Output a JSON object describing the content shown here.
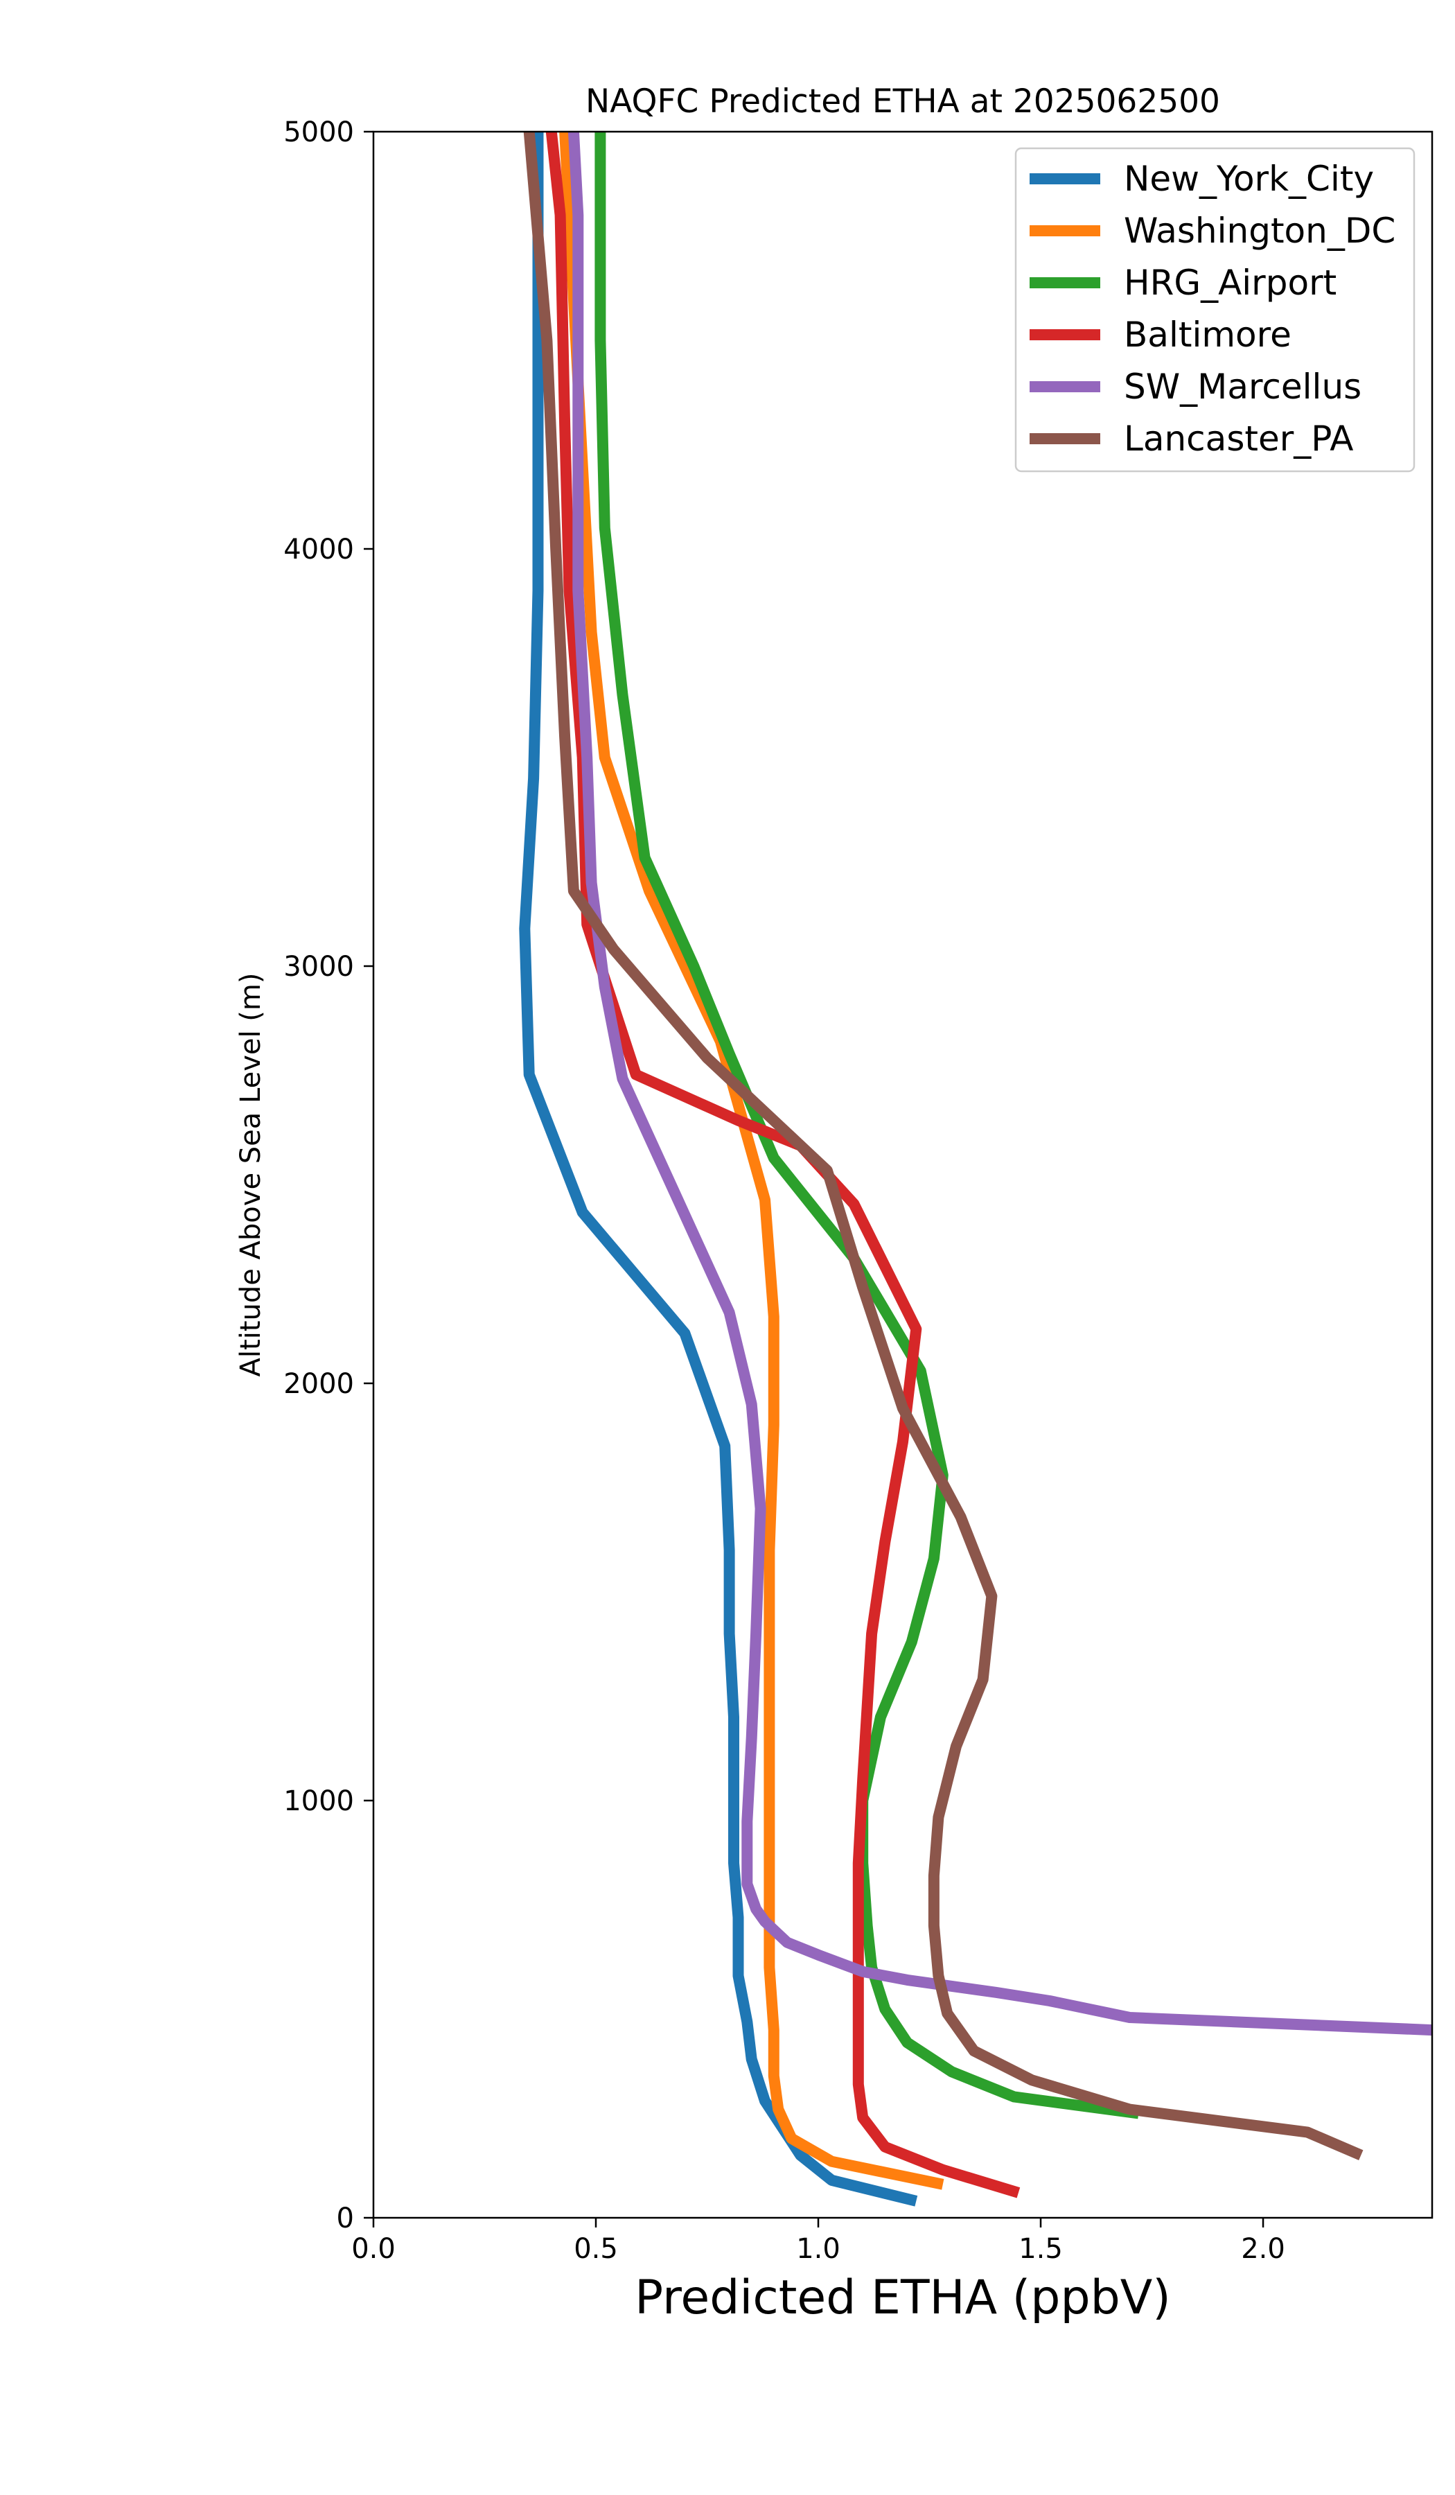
{
  "chart_data": {
    "type": "line",
    "title": "NAQFC Predicted ETHA at 2025062500",
    "xlabel": "Predicted ETHA (ppbV)",
    "ylabel": "Altitude Above Sea Level (m)",
    "xlim": [
      0.0,
      2.38
    ],
    "ylim": [
      0,
      5000
    ],
    "xticks": [
      0.0,
      0.5,
      1.0,
      1.5,
      2.0
    ],
    "xtick_labels": [
      "0.0",
      "0.5",
      "1.0",
      "1.5",
      "2.0"
    ],
    "yticks": [
      0,
      1000,
      2000,
      3000,
      4000,
      5000
    ],
    "ytick_labels": [
      "0",
      "1000",
      "2000",
      "3000",
      "4000",
      "5000"
    ],
    "grid": false,
    "legend_position": "top-right",
    "series": [
      {
        "name": "New_York_City",
        "color": "#1f77b4",
        "points": [
          [
            1.22,
            40
          ],
          [
            1.03,
            90
          ],
          [
            0.96,
            150
          ],
          [
            0.88,
            280
          ],
          [
            0.85,
            380
          ],
          [
            0.84,
            470
          ],
          [
            0.82,
            580
          ],
          [
            0.82,
            720
          ],
          [
            0.81,
            850
          ],
          [
            0.81,
            1000
          ],
          [
            0.81,
            1200
          ],
          [
            0.8,
            1400
          ],
          [
            0.8,
            1600
          ],
          [
            0.79,
            1850
          ],
          [
            0.7,
            2120
          ],
          [
            0.47,
            2410
          ],
          [
            0.35,
            2740
          ],
          [
            0.34,
            3090
          ],
          [
            0.36,
            3450
          ],
          [
            0.37,
            3900
          ],
          [
            0.37,
            4300
          ],
          [
            0.37,
            4700
          ],
          [
            0.37,
            5000
          ]
        ]
      },
      {
        "name": "Washington_DC",
        "color": "#ff7f0e",
        "points": [
          [
            1.28,
            80
          ],
          [
            1.03,
            135
          ],
          [
            0.94,
            190
          ],
          [
            0.91,
            260
          ],
          [
            0.9,
            340
          ],
          [
            0.9,
            450
          ],
          [
            0.89,
            600
          ],
          [
            0.89,
            800
          ],
          [
            0.89,
            1000
          ],
          [
            0.89,
            1300
          ],
          [
            0.89,
            1600
          ],
          [
            0.9,
            1900
          ],
          [
            0.9,
            2160
          ],
          [
            0.88,
            2440
          ],
          [
            0.78,
            2820
          ],
          [
            0.62,
            3180
          ],
          [
            0.52,
            3500
          ],
          [
            0.49,
            3800
          ],
          [
            0.47,
            4200
          ],
          [
            0.45,
            4600
          ],
          [
            0.43,
            5000
          ]
        ]
      },
      {
        "name": "HRG_Airport",
        "color": "#2ca02c",
        "points": [
          [
            1.72,
            250
          ],
          [
            1.44,
            290
          ],
          [
            1.3,
            350
          ],
          [
            1.2,
            420
          ],
          [
            1.15,
            500
          ],
          [
            1.12,
            600
          ],
          [
            1.11,
            700
          ],
          [
            1.1,
            850
          ],
          [
            1.1,
            1000
          ],
          [
            1.14,
            1200
          ],
          [
            1.21,
            1380
          ],
          [
            1.26,
            1580
          ],
          [
            1.28,
            1780
          ],
          [
            1.23,
            2030
          ],
          [
            1.08,
            2300
          ],
          [
            0.9,
            2540
          ],
          [
            0.8,
            2790
          ],
          [
            0.72,
            3000
          ],
          [
            0.61,
            3260
          ],
          [
            0.56,
            3650
          ],
          [
            0.52,
            4050
          ],
          [
            0.51,
            4500
          ],
          [
            0.51,
            5000
          ]
        ]
      },
      {
        "name": "Baltimore",
        "color": "#d62728",
        "points": [
          [
            1.45,
            60
          ],
          [
            1.28,
            115
          ],
          [
            1.15,
            170
          ],
          [
            1.1,
            240
          ],
          [
            1.09,
            320
          ],
          [
            1.09,
            400
          ],
          [
            1.09,
            500
          ],
          [
            1.09,
            650
          ],
          [
            1.09,
            850
          ],
          [
            1.1,
            1050
          ],
          [
            1.12,
            1400
          ],
          [
            1.15,
            1620
          ],
          [
            1.19,
            1860
          ],
          [
            1.22,
            2130
          ],
          [
            1.08,
            2430
          ],
          [
            0.96,
            2570
          ],
          [
            0.82,
            2630
          ],
          [
            0.59,
            2740
          ],
          [
            0.48,
            3100
          ],
          [
            0.47,
            3500
          ],
          [
            0.44,
            3900
          ],
          [
            0.43,
            4300
          ],
          [
            0.42,
            4800
          ],
          [
            0.4,
            5000
          ]
        ]
      },
      {
        "name": "SW_Marcellus",
        "color": "#9467bd",
        "points": [
          [
            2.38,
            450
          ],
          [
            1.7,
            480
          ],
          [
            1.52,
            520
          ],
          [
            1.4,
            540
          ],
          [
            1.2,
            570
          ],
          [
            1.1,
            590
          ],
          [
            1.0,
            630
          ],
          [
            0.93,
            660
          ],
          [
            0.88,
            710
          ],
          [
            0.86,
            740
          ],
          [
            0.84,
            800
          ],
          [
            0.84,
            950
          ],
          [
            0.85,
            1150
          ],
          [
            0.86,
            1400
          ],
          [
            0.87,
            1700
          ],
          [
            0.85,
            1950
          ],
          [
            0.8,
            2170
          ],
          [
            0.68,
            2450
          ],
          [
            0.56,
            2730
          ],
          [
            0.52,
            2950
          ],
          [
            0.49,
            3200
          ],
          [
            0.48,
            3500
          ],
          [
            0.46,
            3900
          ],
          [
            0.46,
            4400
          ],
          [
            0.46,
            4800
          ],
          [
            0.45,
            5000
          ]
        ]
      },
      {
        "name": "Lancaster_PA",
        "color": "#8c564b",
        "points": [
          [
            2.22,
            150
          ],
          [
            2.1,
            205
          ],
          [
            1.7,
            260
          ],
          [
            1.48,
            330
          ],
          [
            1.35,
            400
          ],
          [
            1.29,
            490
          ],
          [
            1.27,
            580
          ],
          [
            1.26,
            700
          ],
          [
            1.26,
            820
          ],
          [
            1.27,
            960
          ],
          [
            1.31,
            1130
          ],
          [
            1.37,
            1290
          ],
          [
            1.39,
            1490
          ],
          [
            1.32,
            1680
          ],
          [
            1.19,
            1940
          ],
          [
            1.1,
            2230
          ],
          [
            1.02,
            2510
          ],
          [
            0.75,
            2780
          ],
          [
            0.54,
            3040
          ],
          [
            0.45,
            3180
          ],
          [
            0.43,
            3550
          ],
          [
            0.41,
            4000
          ],
          [
            0.39,
            4500
          ],
          [
            0.35,
            5000
          ]
        ]
      }
    ]
  }
}
